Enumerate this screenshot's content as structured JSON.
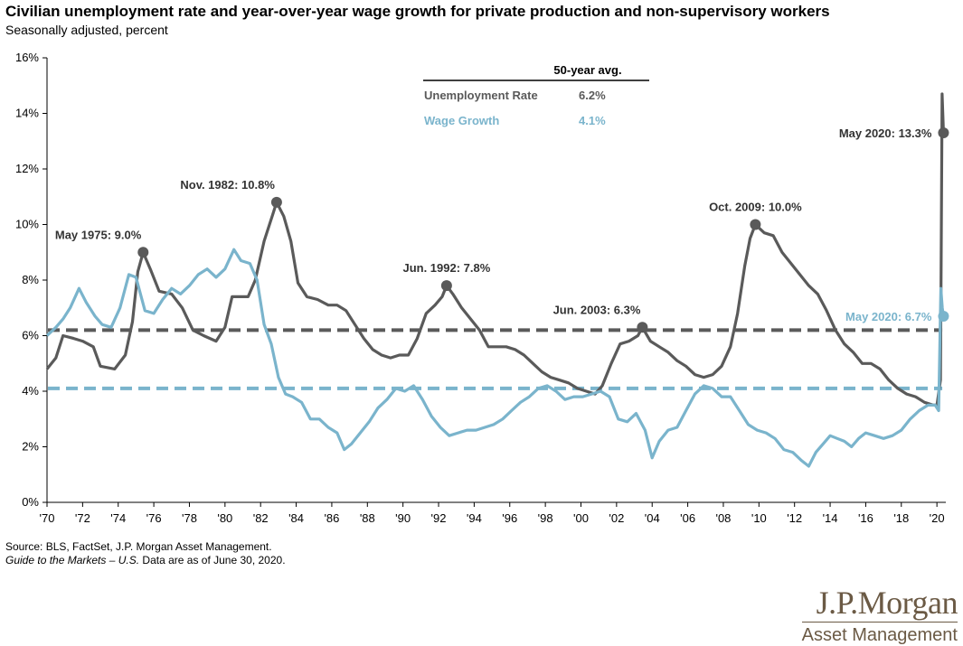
{
  "title": "Civilian unemployment rate and year-over-year wage growth for private production and non-supervisory workers",
  "subtitle": "Seasonally adjusted, percent",
  "source_line1": "Source: BLS, FactSet, J.P. Morgan Asset Management.",
  "source_line2_italic": "Guide to the Markets – U.S.",
  "source_line2_rest": " Data are as of June 30, 2020.",
  "logo": {
    "name": "J.P.Morgan",
    "sub": "Asset Management"
  },
  "colors": {
    "unemployment": "#5a5a5a",
    "wage": "#7ab4cc"
  },
  "chart_data": {
    "type": "line",
    "xlim": [
      1970,
      2020.5
    ],
    "ylim": [
      0,
      16
    ],
    "x_ticks": [
      {
        "v": 1970,
        "label": "'70"
      },
      {
        "v": 1972,
        "label": "'72"
      },
      {
        "v": 1974,
        "label": "'74"
      },
      {
        "v": 1976,
        "label": "'76"
      },
      {
        "v": 1978,
        "label": "'78"
      },
      {
        "v": 1980,
        "label": "'80"
      },
      {
        "v": 1982,
        "label": "'82"
      },
      {
        "v": 1984,
        "label": "'84"
      },
      {
        "v": 1986,
        "label": "'86"
      },
      {
        "v": 1988,
        "label": "'88"
      },
      {
        "v": 1990,
        "label": "'90"
      },
      {
        "v": 1992,
        "label": "'92"
      },
      {
        "v": 1994,
        "label": "'94"
      },
      {
        "v": 1996,
        "label": "'96"
      },
      {
        "v": 1998,
        "label": "'98"
      },
      {
        "v": 2000,
        "label": "'00"
      },
      {
        "v": 2002,
        "label": "'02"
      },
      {
        "v": 2004,
        "label": "'04"
      },
      {
        "v": 2006,
        "label": "'06"
      },
      {
        "v": 2008,
        "label": "'08"
      },
      {
        "v": 2010,
        "label": "'10"
      },
      {
        "v": 2012,
        "label": "'12"
      },
      {
        "v": 2014,
        "label": "'14"
      },
      {
        "v": 2016,
        "label": "'16"
      },
      {
        "v": 2018,
        "label": "'18"
      },
      {
        "v": 2020,
        "label": "'20"
      }
    ],
    "y_ticks": [
      {
        "v": 0,
        "label": "0%"
      },
      {
        "v": 2,
        "label": "2%"
      },
      {
        "v": 4,
        "label": "4%"
      },
      {
        "v": 6,
        "label": "6%"
      },
      {
        "v": 8,
        "label": "8%"
      },
      {
        "v": 10,
        "label": "10%"
      },
      {
        "v": 12,
        "label": "12%"
      },
      {
        "v": 14,
        "label": "14%"
      },
      {
        "v": 16,
        "label": "16%"
      }
    ],
    "legend": {
      "header": "50-year avg.",
      "rows": [
        {
          "label": "Unemployment Rate",
          "value": "6.2%",
          "series": "unemployment"
        },
        {
          "label": "Wage Growth",
          "value": "4.1%",
          "series": "wage"
        }
      ]
    },
    "averages": [
      {
        "series": "unemployment",
        "value": 6.2
      },
      {
        "series": "wage",
        "value": 4.1
      }
    ],
    "series": [
      {
        "name": "Unemployment Rate",
        "key": "unemployment",
        "points": [
          [
            1970.0,
            4.8
          ],
          [
            1970.5,
            5.2
          ],
          [
            1970.9,
            6.0
          ],
          [
            1971.5,
            5.9
          ],
          [
            1972.0,
            5.8
          ],
          [
            1972.6,
            5.6
          ],
          [
            1973.0,
            4.9
          ],
          [
            1973.8,
            4.8
          ],
          [
            1974.4,
            5.3
          ],
          [
            1974.8,
            6.5
          ],
          [
            1975.1,
            8.3
          ],
          [
            1975.4,
            9.0
          ],
          [
            1975.8,
            8.4
          ],
          [
            1976.3,
            7.6
          ],
          [
            1977.0,
            7.5
          ],
          [
            1977.6,
            7.0
          ],
          [
            1978.2,
            6.2
          ],
          [
            1978.8,
            6.0
          ],
          [
            1979.5,
            5.8
          ],
          [
            1980.0,
            6.3
          ],
          [
            1980.4,
            7.4
          ],
          [
            1980.9,
            7.4
          ],
          [
            1981.3,
            7.4
          ],
          [
            1981.7,
            8.0
          ],
          [
            1982.2,
            9.4
          ],
          [
            1982.7,
            10.4
          ],
          [
            1982.9,
            10.8
          ],
          [
            1983.3,
            10.3
          ],
          [
            1983.7,
            9.4
          ],
          [
            1984.1,
            7.9
          ],
          [
            1984.6,
            7.4
          ],
          [
            1985.2,
            7.3
          ],
          [
            1985.8,
            7.1
          ],
          [
            1986.3,
            7.1
          ],
          [
            1986.8,
            6.9
          ],
          [
            1987.3,
            6.4
          ],
          [
            1987.8,
            5.9
          ],
          [
            1988.3,
            5.5
          ],
          [
            1988.8,
            5.3
          ],
          [
            1989.3,
            5.2
          ],
          [
            1989.8,
            5.3
          ],
          [
            1990.3,
            5.3
          ],
          [
            1990.8,
            5.9
          ],
          [
            1991.3,
            6.8
          ],
          [
            1991.8,
            7.1
          ],
          [
            1992.2,
            7.4
          ],
          [
            1992.45,
            7.8
          ],
          [
            1992.8,
            7.5
          ],
          [
            1993.3,
            7.0
          ],
          [
            1993.8,
            6.6
          ],
          [
            1994.3,
            6.2
          ],
          [
            1994.8,
            5.6
          ],
          [
            1995.3,
            5.6
          ],
          [
            1995.8,
            5.6
          ],
          [
            1996.3,
            5.5
          ],
          [
            1996.8,
            5.3
          ],
          [
            1997.3,
            5.0
          ],
          [
            1997.8,
            4.7
          ],
          [
            1998.3,
            4.5
          ],
          [
            1998.8,
            4.4
          ],
          [
            1999.3,
            4.3
          ],
          [
            1999.8,
            4.1
          ],
          [
            2000.3,
            4.0
          ],
          [
            2000.8,
            3.9
          ],
          [
            2001.2,
            4.2
          ],
          [
            2001.7,
            5.0
          ],
          [
            2002.2,
            5.7
          ],
          [
            2002.7,
            5.8
          ],
          [
            2003.2,
            6.0
          ],
          [
            2003.45,
            6.3
          ],
          [
            2003.9,
            5.8
          ],
          [
            2004.4,
            5.6
          ],
          [
            2004.9,
            5.4
          ],
          [
            2005.4,
            5.1
          ],
          [
            2005.9,
            4.9
          ],
          [
            2006.4,
            4.6
          ],
          [
            2006.9,
            4.5
          ],
          [
            2007.4,
            4.6
          ],
          [
            2007.9,
            4.9
          ],
          [
            2008.4,
            5.6
          ],
          [
            2008.8,
            6.8
          ],
          [
            2009.2,
            8.5
          ],
          [
            2009.5,
            9.5
          ],
          [
            2009.8,
            10.0
          ],
          [
            2010.3,
            9.7
          ],
          [
            2010.8,
            9.6
          ],
          [
            2011.3,
            9.0
          ],
          [
            2011.8,
            8.6
          ],
          [
            2012.3,
            8.2
          ],
          [
            2012.8,
            7.8
          ],
          [
            2013.3,
            7.5
          ],
          [
            2013.8,
            6.9
          ],
          [
            2014.3,
            6.2
          ],
          [
            2014.8,
            5.7
          ],
          [
            2015.3,
            5.4
          ],
          [
            2015.8,
            5.0
          ],
          [
            2016.3,
            5.0
          ],
          [
            2016.8,
            4.8
          ],
          [
            2017.3,
            4.4
          ],
          [
            2017.8,
            4.1
          ],
          [
            2018.3,
            3.9
          ],
          [
            2018.8,
            3.8
          ],
          [
            2019.3,
            3.6
          ],
          [
            2019.8,
            3.5
          ],
          [
            2020.0,
            3.5
          ],
          [
            2020.2,
            4.4
          ],
          [
            2020.29,
            14.7
          ],
          [
            2020.37,
            13.3
          ]
        ]
      },
      {
        "name": "Wage Growth",
        "key": "wage",
        "points": [
          [
            1970.0,
            6.0
          ],
          [
            1970.5,
            6.3
          ],
          [
            1970.9,
            6.6
          ],
          [
            1971.3,
            7.0
          ],
          [
            1971.8,
            7.7
          ],
          [
            1972.2,
            7.2
          ],
          [
            1972.7,
            6.7
          ],
          [
            1973.1,
            6.4
          ],
          [
            1973.6,
            6.3
          ],
          [
            1974.1,
            7.0
          ],
          [
            1974.6,
            8.2
          ],
          [
            1975.0,
            8.1
          ],
          [
            1975.5,
            6.9
          ],
          [
            1976.0,
            6.8
          ],
          [
            1976.5,
            7.3
          ],
          [
            1977.0,
            7.7
          ],
          [
            1977.5,
            7.5
          ],
          [
            1978.0,
            7.8
          ],
          [
            1978.5,
            8.2
          ],
          [
            1979.0,
            8.4
          ],
          [
            1979.5,
            8.1
          ],
          [
            1980.0,
            8.4
          ],
          [
            1980.5,
            9.1
          ],
          [
            1980.9,
            8.7
          ],
          [
            1981.4,
            8.6
          ],
          [
            1981.8,
            8.0
          ],
          [
            1982.2,
            6.4
          ],
          [
            1982.6,
            5.7
          ],
          [
            1983.0,
            4.5
          ],
          [
            1983.4,
            3.9
          ],
          [
            1983.8,
            3.8
          ],
          [
            1984.3,
            3.6
          ],
          [
            1984.8,
            3.0
          ],
          [
            1985.3,
            3.0
          ],
          [
            1985.8,
            2.7
          ],
          [
            1986.3,
            2.5
          ],
          [
            1986.7,
            1.9
          ],
          [
            1987.1,
            2.1
          ],
          [
            1987.6,
            2.5
          ],
          [
            1988.1,
            2.9
          ],
          [
            1988.6,
            3.4
          ],
          [
            1989.1,
            3.7
          ],
          [
            1989.6,
            4.1
          ],
          [
            1990.1,
            4.0
          ],
          [
            1990.6,
            4.2
          ],
          [
            1991.1,
            3.7
          ],
          [
            1991.6,
            3.1
          ],
          [
            1992.1,
            2.7
          ],
          [
            1992.6,
            2.4
          ],
          [
            1993.1,
            2.5
          ],
          [
            1993.6,
            2.6
          ],
          [
            1994.1,
            2.6
          ],
          [
            1994.6,
            2.7
          ],
          [
            1995.1,
            2.8
          ],
          [
            1995.6,
            3.0
          ],
          [
            1996.1,
            3.3
          ],
          [
            1996.6,
            3.6
          ],
          [
            1997.1,
            3.8
          ],
          [
            1997.6,
            4.1
          ],
          [
            1998.1,
            4.2
          ],
          [
            1998.6,
            4.0
          ],
          [
            1999.1,
            3.7
          ],
          [
            1999.6,
            3.8
          ],
          [
            2000.1,
            3.8
          ],
          [
            2000.6,
            3.9
          ],
          [
            2001.1,
            4.0
          ],
          [
            2001.6,
            3.8
          ],
          [
            2002.1,
            3.0
          ],
          [
            2002.6,
            2.9
          ],
          [
            2003.1,
            3.2
          ],
          [
            2003.6,
            2.6
          ],
          [
            2004.0,
            1.6
          ],
          [
            2004.4,
            2.2
          ],
          [
            2004.9,
            2.6
          ],
          [
            2005.4,
            2.7
          ],
          [
            2005.9,
            3.3
          ],
          [
            2006.4,
            3.9
          ],
          [
            2006.9,
            4.2
          ],
          [
            2007.4,
            4.1
          ],
          [
            2007.9,
            3.8
          ],
          [
            2008.4,
            3.8
          ],
          [
            2008.9,
            3.3
          ],
          [
            2009.4,
            2.8
          ],
          [
            2009.9,
            2.6
          ],
          [
            2010.4,
            2.5
          ],
          [
            2010.9,
            2.3
          ],
          [
            2011.4,
            1.9
          ],
          [
            2011.9,
            1.8
          ],
          [
            2012.4,
            1.5
          ],
          [
            2012.8,
            1.3
          ],
          [
            2013.2,
            1.8
          ],
          [
            2013.6,
            2.1
          ],
          [
            2014.0,
            2.4
          ],
          [
            2014.4,
            2.3
          ],
          [
            2014.8,
            2.2
          ],
          [
            2015.2,
            2.0
          ],
          [
            2015.6,
            2.3
          ],
          [
            2016.0,
            2.5
          ],
          [
            2016.5,
            2.4
          ],
          [
            2017.0,
            2.3
          ],
          [
            2017.5,
            2.4
          ],
          [
            2018.0,
            2.6
          ],
          [
            2018.5,
            3.0
          ],
          [
            2019.0,
            3.3
          ],
          [
            2019.5,
            3.5
          ],
          [
            2019.9,
            3.5
          ],
          [
            2020.1,
            3.3
          ],
          [
            2020.22,
            7.7
          ],
          [
            2020.3,
            7.0
          ],
          [
            2020.37,
            6.7
          ]
        ]
      }
    ],
    "annotations": [
      {
        "x": 1975.4,
        "y": 9.0,
        "series": "unemployment",
        "text": "May 1975: 9.0%",
        "placement": "above-left"
      },
      {
        "x": 1982.9,
        "y": 10.8,
        "series": "unemployment",
        "text": "Nov. 1982: 10.8%",
        "placement": "above-left"
      },
      {
        "x": 1992.45,
        "y": 7.8,
        "series": "unemployment",
        "text": "Jun. 1992: 7.8%",
        "placement": "above"
      },
      {
        "x": 2003.45,
        "y": 6.3,
        "series": "unemployment",
        "text": "Jun. 2003: 6.3%",
        "placement": "above-left"
      },
      {
        "x": 2009.8,
        "y": 10.0,
        "series": "unemployment",
        "text": "Oct. 2009: 10.0%",
        "placement": "above"
      },
      {
        "x": 2020.37,
        "y": 13.3,
        "series": "unemployment",
        "text": "May 2020: 13.3%",
        "placement": "left"
      },
      {
        "x": 2020.37,
        "y": 6.7,
        "series": "wage",
        "text": "May 2020: 6.7%",
        "placement": "left"
      }
    ]
  }
}
